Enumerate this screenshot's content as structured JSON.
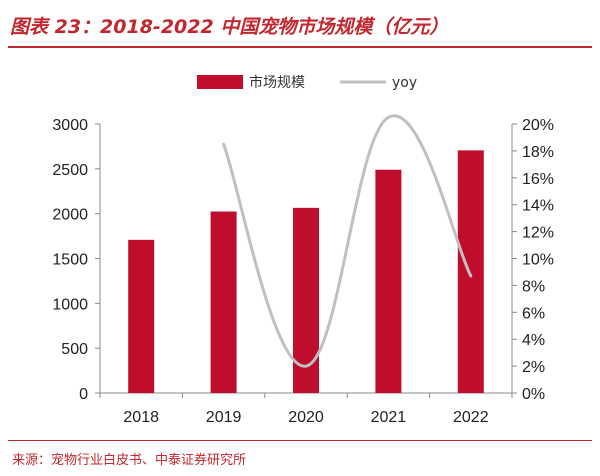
{
  "header": {
    "title": "图表 23：2018-2022 中国宠物市场规模（亿元）"
  },
  "source": {
    "text": "来源：宠物行业白皮书、中泰证券研究所"
  },
  "colors": {
    "accent": "#c1272d",
    "bar": "#c00d2e",
    "line": "#c0c0c0",
    "axis": "#888888"
  },
  "chart_data": {
    "type": "bar",
    "categories": [
      "2018",
      "2019",
      "2020",
      "2021",
      "2022"
    ],
    "series": [
      {
        "name": "市场规模",
        "type": "bar",
        "axis": "left",
        "values": [
          1708,
          2024,
          2065,
          2490,
          2706
        ]
      },
      {
        "name": "yoy",
        "type": "line",
        "axis": "right",
        "values": [
          null,
          0.185,
          0.02,
          0.205,
          0.087
        ]
      }
    ],
    "yleft": {
      "range": [
        0,
        3000
      ],
      "ticks": [
        "0",
        "500",
        "1000",
        "1500",
        "2000",
        "2500",
        "3000"
      ]
    },
    "yright": {
      "range": [
        0,
        0.2
      ],
      "ticks": [
        "0%",
        "2%",
        "4%",
        "6%",
        "8%",
        "10%",
        "12%",
        "14%",
        "16%",
        "18%",
        "20%"
      ]
    },
    "legend_position": "top",
    "grid": false
  }
}
